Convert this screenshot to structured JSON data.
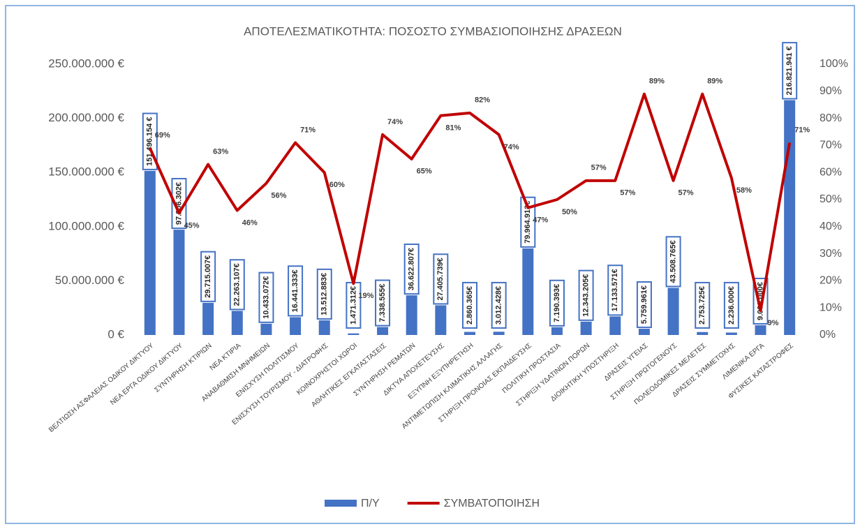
{
  "chart_data": {
    "type": "bar-line",
    "title": "ΑΠΟΤΕΛΕΣΜΑΤΙΚΟΤΗΤΑ: ΠΟΣΟΣΤΟ ΣΥΜΒΑΣΙΟΠΟΙΗΣΗΣ ΔΡΑΣΕΩΝ",
    "categories": [
      "ΒΕΛΤΙΩΣΗ ΑΣΦΑΛΕΙΑΣ ΟΔΙΚΟΥ ΔΙΚΤΥΟΥ",
      "ΝΕΑ ΕΡΓΑ ΟΔΙΚΟΥ ΔΙΚΤΥΟΥ",
      "ΣΥΝΤΗΡΗΣΗ ΚΤΙΡΙΩΝ",
      "ΝΕΑ ΚΤΙΡΙΑ",
      "ΑΝΑΒΑΘΜΙΣΗ ΜΝΗΜΕΙΩΝ",
      "ΕΝΙΣΧΥΣΗ ΠΟΛΙΤΙΣΜΟΥ",
      "ΕΝΙΣΧΥΣΗ ΤΟΥΡΙΣΜΟΥ - ΔΙΑΤΡΟΦΗΣ",
      "ΚΟΙΝΟΧΡΗΣΤΟΙ ΧΩΡΟΙ",
      "ΑΘΛΗΤΙΚΕΣ ΕΓΚΑΤΑΣΤΑΣΕΙΣ",
      "ΣΥΝΤΗΡΗΣΗ ΡΕΜΑΤΩΝ",
      "ΔΙΚΤΥΑ ΑΠΟΧΕΤΕΥΣΗΣ",
      "ΕΞΥΠΝΗ ΕΞΥΠΗΡΕΤΗΣΗ",
      "ΑΝΤΙΜΕΤΩΠΙΣΗ ΚΛΙΜΑΤΙΚΗΣ ΑΛΛΑΓΗΣ",
      "ΣΤΗΡΙΞΗ ΠΡΟΝΟΙΑΣ ΕΚΠΑΙΔΕΥΣΗΣ",
      "ΠΟΛΙΤΙΚΗ ΠΡΟΣΤΑΣΙΑ",
      "ΣΤΗΡΙΞΗ ΥΔΑΤΙΝΩΝ ΠΟΡΩΝ",
      "ΔΙΟΙΚΗΤΙΚΗ ΥΠΟΣΤΗΡΙΞΗ",
      "ΔΡΑΣΕΙΣ ΥΓΕΙΑΣ",
      "ΣΤΗΡΙΞΗ ΠΡΩΤΟΓΕΝΟΥΣ",
      "ΠΟΛΕΟΔΟΜΙΚΕΣ ΜΕΛΕΤΕΣ",
      "ΔΡΑΣΕΙΣ ΣΥΜΜΕΤΟΧΗΣ",
      "ΛΙΜΕΝΙΚΑ ΕΡΓΑ",
      "ΦΥΣΙΚΕΣ ΚΑΤΑΣΤΡΟΦΕΣ"
    ],
    "series": [
      {
        "name": "Π/Υ",
        "color": "#4472c4",
        "type": "bar",
        "values": [
          151496154,
          97206302,
          29715007,
          22263107,
          10433072,
          16441333,
          13512883,
          1471312,
          7338555,
          36622807,
          27405739,
          2860365,
          3012428,
          79964913,
          7190393,
          12343205,
          17133571,
          5759961,
          43508765,
          2753725,
          2236000,
          9000000,
          216821941
        ],
        "value_labels": [
          "151.496.154 €",
          "97.206.302€",
          "29.715.007€",
          "22.263.107€",
          "10.433.072€",
          "16.441.333€",
          "13.512.883€",
          "1.471.312€",
          "7.338.555€",
          "36.622.807€",
          "27.405.739€",
          "2.860.365€",
          "3.012.428€",
          "79.964.913€",
          "7.190.393€",
          "12.343.205€",
          "17.133.571€",
          "5.759.961€",
          "43.508.765€",
          "2.753.725€",
          "2.236.000€",
          "9.000.000€",
          "216.821.941 €"
        ]
      },
      {
        "name": "ΣΥΜΒΑΤΟΠΟΙΗΣΗ",
        "color": "#c00000",
        "type": "line",
        "axis": "y2",
        "values": [
          69,
          45,
          63,
          46,
          56,
          71,
          60,
          19,
          74,
          65,
          81,
          82,
          74,
          47,
          50,
          57,
          57,
          89,
          57,
          89,
          58,
          9,
          71
        ],
        "value_labels": [
          "69%",
          "45%",
          "63%",
          "46%",
          "56%",
          "71%",
          "60%",
          "19%",
          "74%",
          "65%",
          "81%",
          "82%",
          "74%",
          "47%",
          "50%",
          "57%",
          "57%",
          "89%",
          "57%",
          "89%",
          "58%",
          "9%",
          "71%"
        ]
      }
    ],
    "ylim": [
      0,
      250000000
    ],
    "yticks": [
      {
        "value": 0,
        "label": "0 €"
      },
      {
        "value": 50000000,
        "label": "50.000.000 €"
      },
      {
        "value": 100000000,
        "label": "100.000.000 €"
      },
      {
        "value": 150000000,
        "label": "150.000.000 €"
      },
      {
        "value": 200000000,
        "label": "200.000.000 €"
      },
      {
        "value": 250000000,
        "label": "250.000.000 €"
      }
    ],
    "y2lim": [
      0,
      100
    ],
    "y2ticks": [
      {
        "value": 0,
        "label": "0%"
      },
      {
        "value": 10,
        "label": "10%"
      },
      {
        "value": 20,
        "label": "20%"
      },
      {
        "value": 30,
        "label": "30%"
      },
      {
        "value": 40,
        "label": "40%"
      },
      {
        "value": 50,
        "label": "50%"
      },
      {
        "value": 60,
        "label": "60%"
      },
      {
        "value": 70,
        "label": "70%"
      },
      {
        "value": 80,
        "label": "80%"
      },
      {
        "value": 90,
        "label": "90%"
      },
      {
        "value": 100,
        "label": "100%"
      }
    ],
    "grid": false,
    "legend": "bottom"
  }
}
